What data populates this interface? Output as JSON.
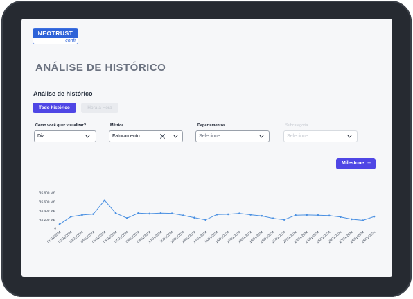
{
  "logo": {
    "main": "NEOTRUST",
    "sub": "confi"
  },
  "page": {
    "title": "ANÁLISE DE HISTÓRICO",
    "section_title": "Análise de histórico"
  },
  "tabs": [
    {
      "label": "Todo histórico",
      "active": true
    },
    {
      "label": "Hora a Hora",
      "active": false
    }
  ],
  "filters": {
    "visualizar": {
      "label": "Como você quer visualizar?",
      "value": "Dia"
    },
    "metrica": {
      "label": "Métrica",
      "value": "Faturamento"
    },
    "departamentos": {
      "label": "Departamentos",
      "placeholder": "Selecione..."
    },
    "subcategoria": {
      "label": "Subcategoria",
      "placeholder": "Selecione...",
      "disabled": true
    }
  },
  "milestone": {
    "label": "Milestone",
    "icon": "+"
  },
  "colors": {
    "accent": "#4f46e5",
    "line": "#4a90e2",
    "frame": "#262a31"
  },
  "chart_data": {
    "type": "line",
    "title": "",
    "xlabel": "",
    "ylabel": "",
    "yticks": [
      "R$ 800 M£",
      "R$ 600 M£",
      "R$ 400 M£",
      "R$ 200 M£",
      "0"
    ],
    "ylim": [
      0,
      800
    ],
    "x": [
      "01/01/2024",
      "02/01/2024",
      "03/01/2024",
      "04/01/2024",
      "05/01/2024",
      "06/01/2024",
      "07/01/2024",
      "08/01/2024",
      "09/01/2024",
      "10/01/2024",
      "11/01/2024",
      "12/01/2024",
      "13/01/2024",
      "14/01/2024",
      "15/01/2024",
      "16/01/2024",
      "17/01/2024",
      "18/01/2024",
      "19/01/2024",
      "20/01/2024",
      "21/01/2024",
      "22/01/2024",
      "23/01/2024",
      "24/01/2024",
      "25/01/2024",
      "26/01/2024",
      "27/01/2024",
      "28/01/2024",
      "29/01/2024"
    ],
    "series": [
      {
        "values": [
          90,
          260,
          300,
          320,
          630,
          340,
          230,
          340,
          330,
          340,
          335,
          290,
          240,
          190,
          310,
          315,
          335,
          305,
          280,
          225,
          195,
          295,
          300,
          295,
          285,
          255,
          205,
          180,
          265
        ]
      }
    ],
    "grid": false,
    "legend": "none"
  }
}
